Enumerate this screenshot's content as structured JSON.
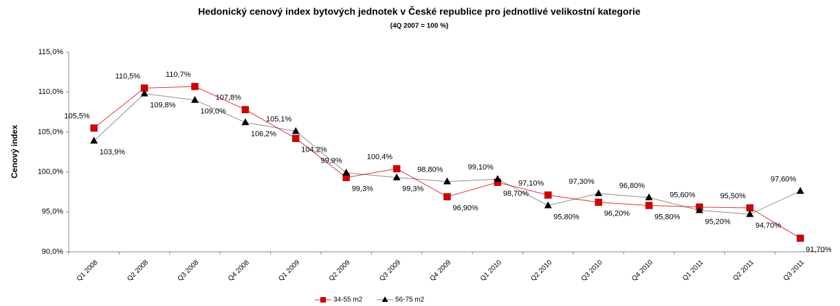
{
  "chart_data": {
    "type": "line",
    "title": "Hedonický cenový index bytových jednotek v České republice pro jednotlivé velikostní kategorie",
    "subtitle": "(4Q 2007 = 100 %)",
    "y_label": "Cenový index",
    "categories": [
      "Q1 2008",
      "Q2 2008",
      "Q3 2008",
      "Q4 2008",
      "Q1 2009",
      "Q2 2009",
      "Q3 2009",
      "Q4 2009",
      "Q1 2010",
      "Q2 2010",
      "Q3 2010",
      "Q4 2010",
      "Q1 2011",
      "Q2 2011",
      "Q3 2011"
    ],
    "series": [
      {
        "name": "34-55 m2",
        "color": "#d40000",
        "marker": "square",
        "values": [
          105.5,
          110.5,
          110.7,
          107.8,
          104.2,
          99.3,
          100.4,
          96.9,
          98.7,
          97.1,
          96.2,
          95.8,
          95.6,
          95.5,
          91.7
        ],
        "value_labels": [
          "105,5%",
          "110,5%",
          "110,7%",
          "107,8%",
          "104,2%",
          "99,3%",
          "100,4%",
          "96,90%",
          "98,70%",
          "97,10%",
          "96,20%",
          "95,80%",
          "95,60%",
          "95,50%",
          "91,70%"
        ]
      },
      {
        "name": "56-75 m2",
        "color": "#000000",
        "marker": "triangle",
        "values": [
          103.9,
          109.8,
          109.0,
          106.2,
          105.1,
          99.9,
          99.3,
          98.8,
          99.1,
          95.8,
          97.3,
          96.8,
          95.2,
          94.7,
          97.6
        ],
        "value_labels": [
          "103,9%",
          "109,8%",
          "109,0%",
          "106,2%",
          "105,1%",
          "99,9%",
          "99,3%",
          "98,80%",
          "99,10%",
          "95,80%",
          "97,30%",
          "96,80%",
          "95,20%",
          "94,70%",
          "97,60%"
        ]
      }
    ],
    "ylim": [
      90,
      115
    ],
    "yticks": [
      {
        "value": 90,
        "label": "90,0%"
      },
      {
        "value": 95,
        "label": "95,0%"
      },
      {
        "value": 100,
        "label": "100,0%"
      },
      {
        "value": 105,
        "label": "105,0%"
      },
      {
        "value": 110,
        "label": "110,0%"
      },
      {
        "value": 115,
        "label": "115,0%"
      }
    ],
    "grid": false,
    "legend": "bottom"
  }
}
